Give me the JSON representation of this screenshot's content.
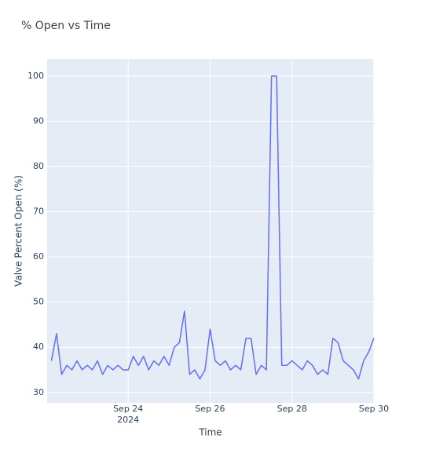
{
  "chart_data": {
    "type": "line",
    "title": "% Open vs Time",
    "x_label": "Time",
    "y_label": "Valve Percent Open (%)",
    "x": [
      "2024-09-22T03:00",
      "2024-09-22T06:00",
      "2024-09-22T09:00",
      "2024-09-22T12:00",
      "2024-09-22T15:00",
      "2024-09-22T18:00",
      "2024-09-22T21:00",
      "2024-09-23T00:00",
      "2024-09-23T03:00",
      "2024-09-23T06:00",
      "2024-09-23T09:00",
      "2024-09-23T12:00",
      "2024-09-23T15:00",
      "2024-09-23T18:00",
      "2024-09-23T21:00",
      "2024-09-24T00:00",
      "2024-09-24T03:00",
      "2024-09-24T06:00",
      "2024-09-24T09:00",
      "2024-09-24T12:00",
      "2024-09-24T15:00",
      "2024-09-24T18:00",
      "2024-09-24T21:00",
      "2024-09-25T00:00",
      "2024-09-25T03:00",
      "2024-09-25T06:00",
      "2024-09-25T09:00",
      "2024-09-25T12:00",
      "2024-09-25T15:00",
      "2024-09-25T18:00",
      "2024-09-25T21:00",
      "2024-09-26T00:00",
      "2024-09-26T03:00",
      "2024-09-26T06:00",
      "2024-09-26T09:00",
      "2024-09-26T12:00",
      "2024-09-26T15:00",
      "2024-09-26T18:00",
      "2024-09-26T21:00",
      "2024-09-27T00:00",
      "2024-09-27T03:00",
      "2024-09-27T06:00",
      "2024-09-27T09:00",
      "2024-09-27T12:00",
      "2024-09-27T15:00",
      "2024-09-27T18:00",
      "2024-09-27T21:00",
      "2024-09-28T00:00",
      "2024-09-28T03:00",
      "2024-09-28T06:00",
      "2024-09-28T09:00",
      "2024-09-28T12:00",
      "2024-09-28T15:00",
      "2024-09-28T18:00",
      "2024-09-28T21:00",
      "2024-09-29T00:00",
      "2024-09-29T03:00",
      "2024-09-29T06:00",
      "2024-09-29T09:00",
      "2024-09-29T12:00",
      "2024-09-29T15:00",
      "2024-09-29T18:00",
      "2024-09-29T21:00",
      "2024-09-30T00:00"
    ],
    "series": [
      {
        "name": "Valve Percent Open",
        "color": "#636efa",
        "values": [
          37,
          43,
          34,
          36,
          35,
          37,
          35,
          36,
          35,
          37,
          34,
          36,
          35,
          36,
          35,
          35,
          38,
          36,
          38,
          35,
          37,
          36,
          38,
          36,
          40,
          41,
          48,
          34,
          35,
          33,
          35,
          44,
          37,
          36,
          37,
          35,
          36,
          35,
          42,
          42,
          34,
          36,
          35,
          100,
          100,
          36,
          36,
          37,
          36,
          35,
          37,
          36,
          34,
          35,
          34,
          42,
          41,
          37,
          36,
          35,
          33,
          37,
          39,
          42
        ]
      }
    ],
    "xlim": [
      "2024-09-22T00:30",
      "2024-09-30T00:00"
    ],
    "xticks": [
      {
        "value": "2024-09-24",
        "label": "Sep 24\n2024"
      },
      {
        "value": "2024-09-26",
        "label": "Sep 26"
      },
      {
        "value": "2024-09-28",
        "label": "Sep 28"
      },
      {
        "value": "2024-09-30",
        "label": "Sep 30"
      }
    ],
    "ylim": [
      27.7,
      103.8
    ],
    "yticks": [
      30,
      40,
      50,
      60,
      70,
      80,
      90,
      100
    ],
    "grid": true
  }
}
